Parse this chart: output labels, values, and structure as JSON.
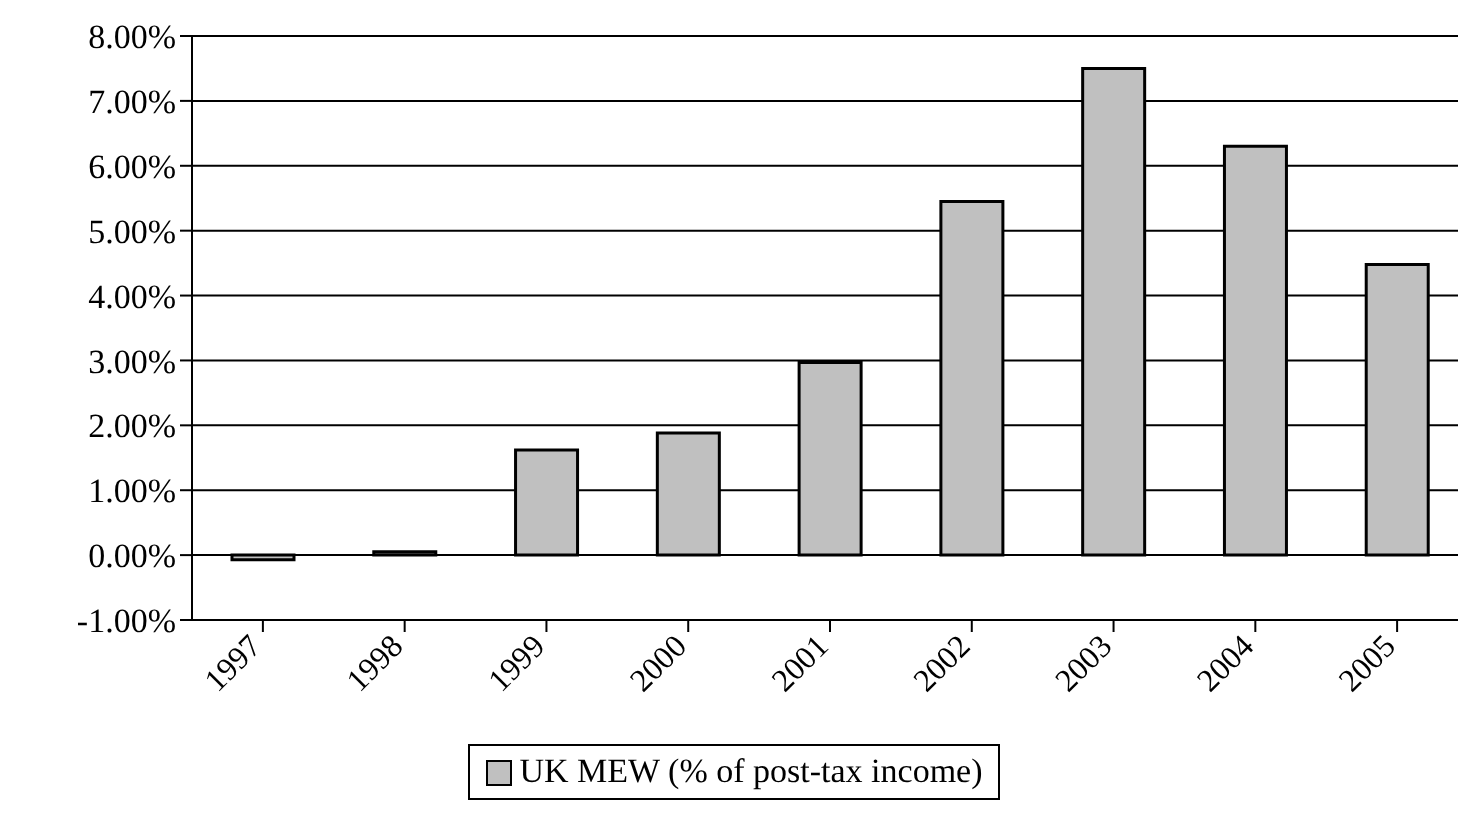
{
  "chart_data": {
    "type": "bar",
    "categories": [
      "1997",
      "1998",
      "1999",
      "2000",
      "2001",
      "2002",
      "2003",
      "2004",
      "2005"
    ],
    "series": [
      {
        "name": "UK MEW (% of post-tax income)",
        "color": "#c0c0c0",
        "values": [
          -0.07,
          0.05,
          1.62,
          1.88,
          2.97,
          5.45,
          7.5,
          6.3,
          4.48
        ]
      }
    ],
    "ylim": [
      -1,
      8
    ],
    "yticks": [
      {
        "value": -1,
        "label": "-1.00%"
      },
      {
        "value": 0,
        "label": "0.00%"
      },
      {
        "value": 1,
        "label": "1.00%"
      },
      {
        "value": 2,
        "label": "2.00%"
      },
      {
        "value": 3,
        "label": "3.00%"
      },
      {
        "value": 4,
        "label": "4.00%"
      },
      {
        "value": 5,
        "label": "5.00%"
      },
      {
        "value": 6,
        "label": "6.00%"
      },
      {
        "value": 7,
        "label": "7.00%"
      },
      {
        "value": 8,
        "label": "8.00%"
      }
    ],
    "grid": "y",
    "legend": "bottom"
  }
}
